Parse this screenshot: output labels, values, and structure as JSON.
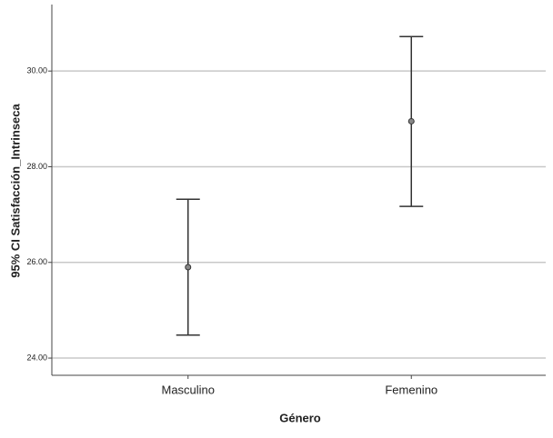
{
  "chart_data": {
    "type": "errorbar",
    "x_label": "Género",
    "y_label": "95% CI Satisfacción_Intrinseca",
    "categories": [
      "Masculino",
      "Femenino"
    ],
    "values": [
      25.9,
      28.95
    ],
    "lower": [
      24.48,
      27.17
    ],
    "upper": [
      27.32,
      30.72
    ],
    "color": "#333333",
    "ylim": [
      23.64,
      31.39
    ],
    "yticks": [
      {
        "value": 24,
        "label": "24.00"
      },
      {
        "value": 26,
        "label": "26.00"
      },
      {
        "value": 28,
        "label": "28.00"
      },
      {
        "value": 30,
        "label": "30.00"
      }
    ],
    "grid": true
  }
}
